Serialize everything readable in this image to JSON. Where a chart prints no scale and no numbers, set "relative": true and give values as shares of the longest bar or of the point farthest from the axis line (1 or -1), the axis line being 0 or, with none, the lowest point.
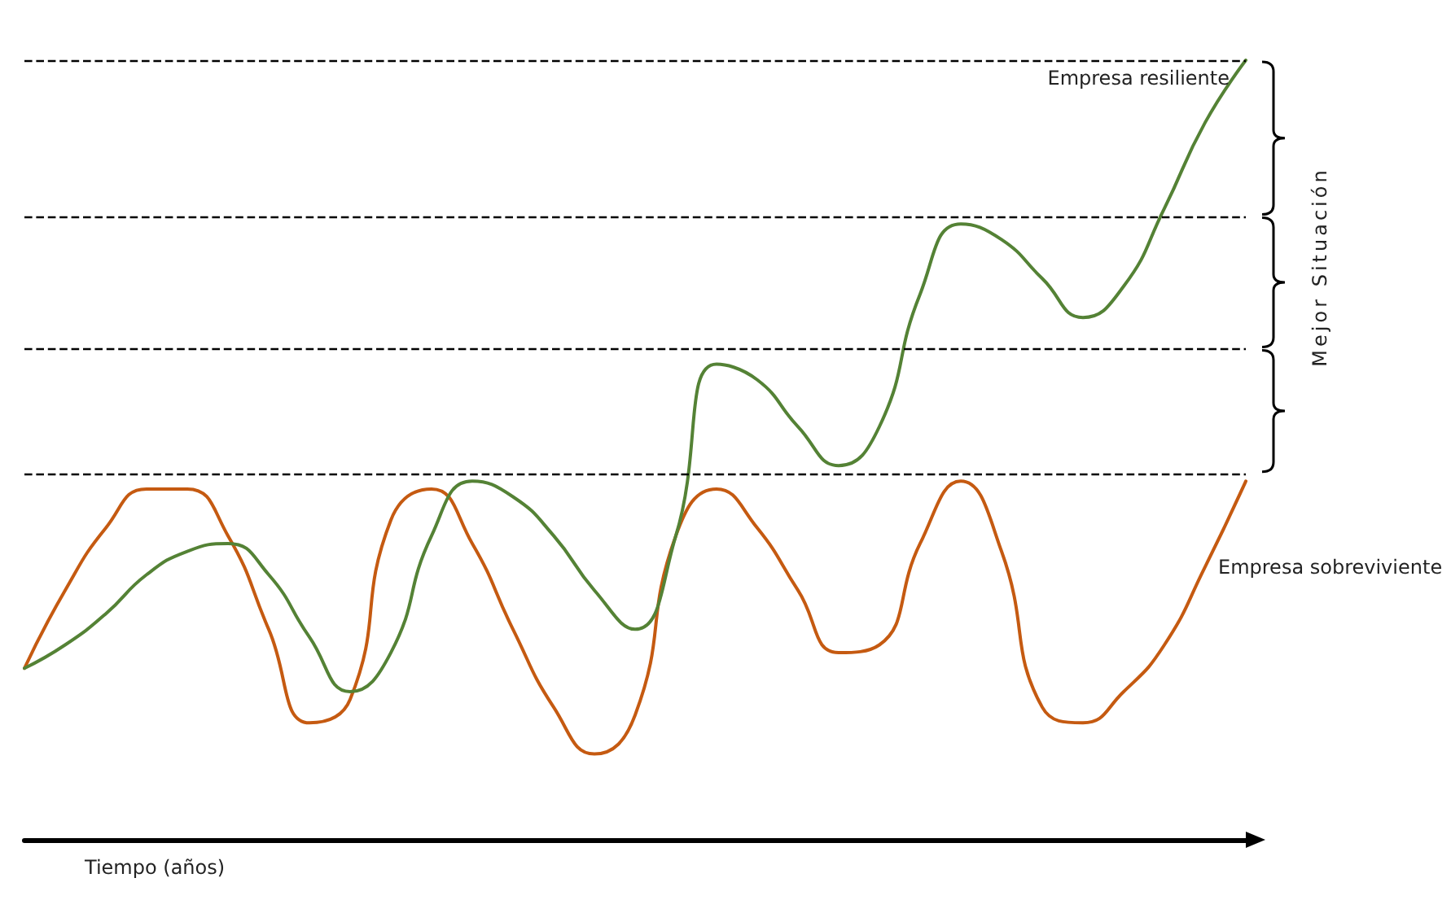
{
  "chart_data": {
    "type": "line",
    "relative": true,
    "xlabel": "Tiempo (años)",
    "marker": "none",
    "categories": [
      null,
      null,
      null,
      null,
      null,
      null,
      null,
      null,
      null,
      null,
      null,
      null,
      null,
      null,
      null,
      null,
      null,
      null,
      null,
      null,
      null,
      null,
      null,
      null,
      null,
      null,
      null,
      null,
      null,
      null,
      null
    ],
    "series": [
      {
        "name": "Empresa sobreviviente",
        "color": "#c55a11",
        "values": [
          0.22,
          0.32,
          0.4,
          0.45,
          0.45,
          0.39,
          0.27,
          0.15,
          0.18,
          0.41,
          0.45,
          0.38,
          0.27,
          0.17,
          0.11,
          0.16,
          0.39,
          0.45,
          0.4,
          0.32,
          0.24,
          0.25,
          0.38,
          0.46,
          0.37,
          0.17,
          0.15,
          0.19,
          0.25,
          0.35,
          0.46
        ]
      },
      {
        "name": "Empresa resiliente",
        "color": "#548235",
        "values": [
          0.22,
          0.25,
          0.29,
          0.34,
          0.37,
          0.38,
          0.34,
          0.26,
          0.19,
          0.24,
          0.39,
          0.46,
          0.44,
          0.39,
          0.32,
          0.27,
          0.39,
          0.61,
          0.59,
          0.53,
          0.48,
          0.53,
          0.7,
          0.79,
          0.77,
          0.72,
          0.67,
          0.71,
          0.81,
          0.92,
          1
        ]
      }
    ],
    "ref_lines": [
      {
        "axis": "y",
        "value": 0.47,
        "line_style": "dashed",
        "color": "#000000"
      },
      {
        "axis": "y",
        "value": 0.63,
        "line_style": "dashed",
        "color": "#000000"
      },
      {
        "axis": "y",
        "value": 0.8,
        "line_style": "dashed",
        "color": "#000000"
      },
      {
        "axis": "y",
        "value": 1,
        "line_style": "dashed",
        "color": "#000000"
      }
    ],
    "annotations": [
      "Mejor Situación"
    ]
  }
}
